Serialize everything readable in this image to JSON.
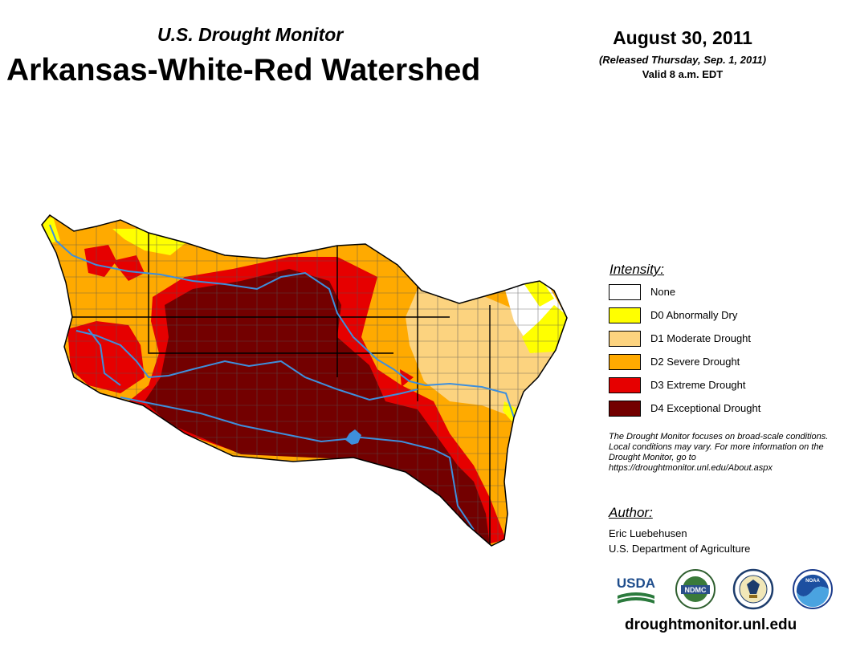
{
  "header": {
    "subtitle": "U.S. Drought Monitor",
    "title": "Arkansas-White-Red Watershed",
    "date": "August 30, 2011",
    "released": "(Released Thursday, Sep. 1, 2011)",
    "valid": "Valid 8 a.m. EDT"
  },
  "legend": {
    "title": "Intensity:",
    "items": [
      {
        "label": "None",
        "color": "#ffffff"
      },
      {
        "label": "D0 Abnormally Dry",
        "color": "#ffff00"
      },
      {
        "label": "D1 Moderate Drought",
        "color": "#fcd37f"
      },
      {
        "label": "D2 Severe Drought",
        "color": "#ffaa00"
      },
      {
        "label": "D3 Extreme Drought",
        "color": "#e60000"
      },
      {
        "label": "D4 Exceptional Drought",
        "color": "#730000"
      }
    ]
  },
  "note": "The Drought Monitor focuses on broad-scale conditions. Local conditions may vary. For more information on the Drought Monitor, go to https://droughtmonitor.unl.edu/About.aspx",
  "author": {
    "title": "Author:",
    "name": "Eric Luebehusen",
    "org": "U.S. Department of Agriculture"
  },
  "logos": [
    {
      "name": "usda-logo",
      "text": "USDA"
    },
    {
      "name": "ndmc-logo",
      "text": "NDMC"
    },
    {
      "name": "doc-seal-logo"
    },
    {
      "name": "noaa-logo",
      "text": "NOAA"
    }
  ],
  "website": "droughtmonitor.unl.edu",
  "colors": {
    "river": "#3e8fdc",
    "county_line": "#555555",
    "state_line": "#000000"
  }
}
